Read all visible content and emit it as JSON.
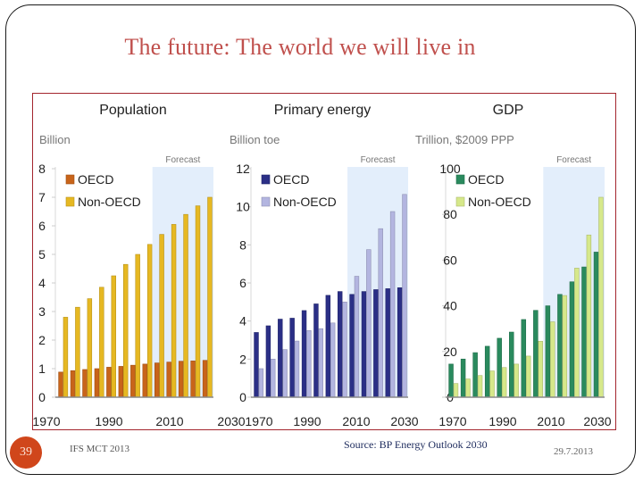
{
  "slide": {
    "title": "The future: The world we will live in",
    "page_number": "39",
    "footer_left": "IFS MCT 2013",
    "source": "Source: BP Energy Outlook 2030",
    "date": "29.7.2013"
  },
  "chart_data": [
    {
      "type": "bar",
      "title": "Population",
      "ylabel": "Billion",
      "xlabel": "",
      "ylim": [
        0,
        8
      ],
      "yticks": [
        0,
        1,
        2,
        3,
        4,
        5,
        6,
        7,
        8
      ],
      "x": [
        1970,
        1975,
        1980,
        1985,
        1990,
        1995,
        2000,
        2005,
        2010,
        2015,
        2020,
        2025,
        2030
      ],
      "xtick_labels": [
        "1970",
        "1990",
        "2010",
        "2030"
      ],
      "forecast_label": "Forecast",
      "forecast_from": 2010,
      "legend": "top-left",
      "series": [
        {
          "name": "OECD",
          "color": "#c8641a",
          "values": [
            0.88,
            0.93,
            0.97,
            1.0,
            1.05,
            1.08,
            1.12,
            1.16,
            1.2,
            1.23,
            1.26,
            1.27,
            1.29
          ]
        },
        {
          "name": "Non-OECD",
          "color": "#e6b822",
          "values": [
            2.8,
            3.15,
            3.45,
            3.85,
            4.25,
            4.65,
            5.0,
            5.35,
            5.7,
            6.05,
            6.4,
            6.7,
            7.0
          ]
        }
      ]
    },
    {
      "type": "bar",
      "title": "Primary energy",
      "ylabel": "Billion toe",
      "xlabel": "",
      "ylim": [
        0,
        12
      ],
      "yticks": [
        0,
        2,
        4,
        6,
        8,
        10,
        12
      ],
      "x": [
        1970,
        1975,
        1980,
        1985,
        1990,
        1995,
        2000,
        2005,
        2010,
        2015,
        2020,
        2025,
        2030
      ],
      "xtick_labels": [
        "1970",
        "1990",
        "2010",
        "2030"
      ],
      "forecast_label": "Forecast",
      "forecast_from": 2010,
      "legend": "top-left",
      "series": [
        {
          "name": "OECD",
          "color": "#2b2f86",
          "values": [
            3.4,
            3.75,
            4.1,
            4.15,
            4.55,
            4.9,
            5.35,
            5.55,
            5.4,
            5.55,
            5.65,
            5.7,
            5.75
          ]
        },
        {
          "name": "Non-OECD",
          "color": "#b3b5e0",
          "values": [
            1.5,
            2.0,
            2.5,
            2.95,
            3.5,
            3.6,
            3.9,
            5.0,
            6.35,
            7.75,
            8.85,
            9.75,
            10.65
          ]
        }
      ]
    },
    {
      "type": "bar",
      "title": "GDP",
      "ylabel": "Trillion, $2009 PPP",
      "xlabel": "",
      "ylim": [
        0,
        100
      ],
      "yticks": [
        0,
        20,
        40,
        60,
        80,
        100
      ],
      "x": [
        1970,
        1975,
        1980,
        1985,
        1990,
        1995,
        2000,
        2005,
        2010,
        2015,
        2020,
        2025,
        2030
      ],
      "xtick_labels": [
        "1970",
        "1990",
        "2010",
        "2030"
      ],
      "forecast_label": "Forecast",
      "forecast_from": 2010,
      "legend": "top-left",
      "series": [
        {
          "name": "OECD",
          "color": "#2a8a5e",
          "values": [
            14.5,
            16.7,
            19.5,
            22.3,
            25.8,
            28.5,
            34,
            38,
            40,
            45,
            50.5,
            57,
            63.5
          ]
        },
        {
          "name": "Non-OECD",
          "color": "#d6e88a",
          "values": [
            6,
            8,
            9.5,
            11.5,
            13,
            14.5,
            18,
            24.5,
            33,
            44.5,
            56.5,
            71,
            87.5
          ]
        }
      ]
    }
  ]
}
